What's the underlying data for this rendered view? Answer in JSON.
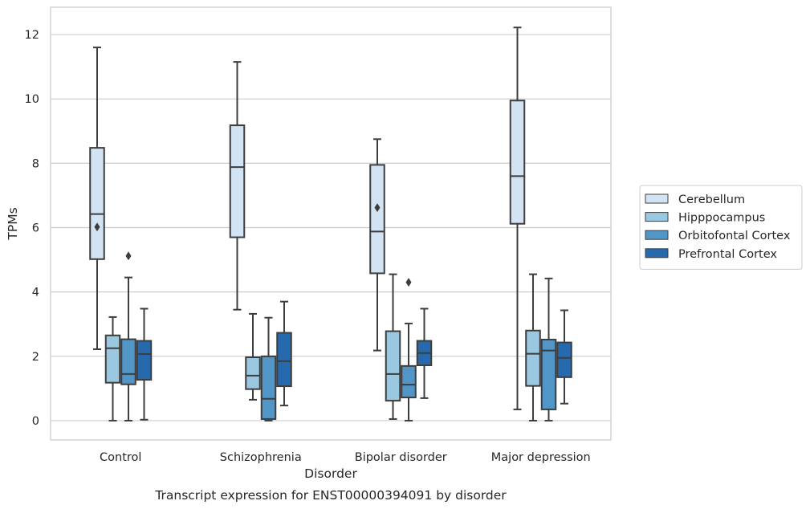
{
  "chart_data": {
    "type": "box",
    "title": "",
    "caption": "Transcript expression for ENST00000394091 by disorder",
    "xlabel": "Disorder",
    "ylabel": "TPMs",
    "ylim": [
      -0.6,
      12.85
    ],
    "yticks": [
      0,
      2,
      4,
      6,
      8,
      10,
      12
    ],
    "grid": true,
    "legend_position": "right",
    "categories": [
      "Control",
      "Schizophrenia",
      "Bipolar disorder",
      "Major depression"
    ],
    "series": [
      {
        "name": "Cerebellum",
        "color": "#d2e3f3",
        "boxes": [
          {
            "whisker_low": 2.22,
            "q1": 5.02,
            "median": 6.42,
            "q3": 8.48,
            "whisker_high": 11.6,
            "outliers": [
              6.02
            ]
          },
          {
            "whisker_low": 3.45,
            "q1": 5.7,
            "median": 7.88,
            "q3": 9.18,
            "whisker_high": 11.15,
            "outliers": []
          },
          {
            "whisker_low": 2.18,
            "q1": 4.58,
            "median": 5.88,
            "q3": 7.95,
            "whisker_high": 8.75,
            "outliers": [
              6.62
            ]
          },
          {
            "whisker_low": 0.35,
            "q1": 6.12,
            "median": 7.6,
            "q3": 9.95,
            "whisker_high": 12.22,
            "outliers": []
          }
        ]
      },
      {
        "name": "Hipppocampus",
        "color": "#9ac8e0",
        "boxes": [
          {
            "whisker_low": 0.0,
            "q1": 1.18,
            "median": 2.25,
            "q3": 2.65,
            "whisker_high": 3.22,
            "outliers": []
          },
          {
            "whisker_low": 0.65,
            "q1": 0.98,
            "median": 1.4,
            "q3": 1.97,
            "whisker_high": 3.32,
            "outliers": []
          },
          {
            "whisker_low": 0.05,
            "q1": 0.62,
            "median": 1.45,
            "q3": 2.78,
            "whisker_high": 4.55,
            "outliers": []
          },
          {
            "whisker_low": 0.0,
            "q1": 1.08,
            "median": 2.08,
            "q3": 2.8,
            "whisker_high": 4.55,
            "outliers": []
          }
        ]
      },
      {
        "name": "Orbitofontal Cortex",
        "color": "#5296c8",
        "boxes": [
          {
            "whisker_low": 0.0,
            "q1": 1.13,
            "median": 1.45,
            "q3": 2.53,
            "whisker_high": 4.45,
            "outliers": [
              5.12
            ]
          },
          {
            "whisker_low": 0.0,
            "q1": 0.05,
            "median": 0.68,
            "q3": 2.0,
            "whisker_high": 3.2,
            "outliers": []
          },
          {
            "whisker_low": 0.0,
            "q1": 0.72,
            "median": 1.12,
            "q3": 1.7,
            "whisker_high": 3.02,
            "outliers": [
              4.3
            ]
          },
          {
            "whisker_low": 0.0,
            "q1": 0.35,
            "median": 2.18,
            "q3": 2.52,
            "whisker_high": 4.42,
            "outliers": []
          }
        ]
      },
      {
        "name": "Prefrontal Cortex",
        "color": "#2769ad",
        "boxes": [
          {
            "whisker_low": 0.03,
            "q1": 1.27,
            "median": 2.07,
            "q3": 2.48,
            "whisker_high": 3.48,
            "outliers": []
          },
          {
            "whisker_low": 0.47,
            "q1": 1.07,
            "median": 1.85,
            "q3": 2.73,
            "whisker_high": 3.7,
            "outliers": []
          },
          {
            "whisker_low": 0.7,
            "q1": 1.72,
            "median": 2.1,
            "q3": 2.48,
            "whisker_high": 3.48,
            "outliers": []
          },
          {
            "whisker_low": 0.53,
            "q1": 1.35,
            "median": 1.95,
            "q3": 2.43,
            "whisker_high": 3.43,
            "outliers": []
          }
        ]
      }
    ]
  }
}
